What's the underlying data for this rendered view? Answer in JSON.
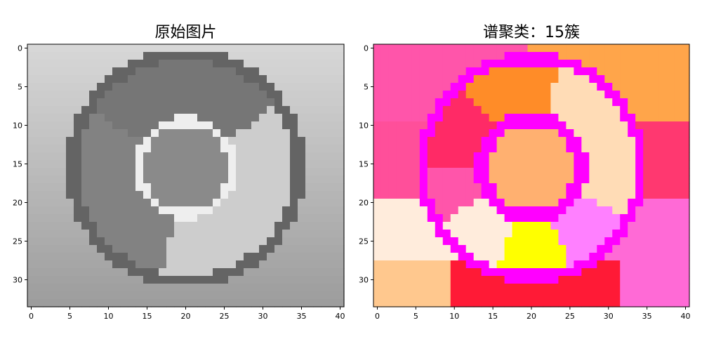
{
  "chart_data": [
    {
      "type": "heatmap",
      "title": "原始图片",
      "xlabel": "",
      "ylabel": "",
      "xlim": [
        -0.5,
        40.5
      ],
      "ylim": [
        33.5,
        -0.5
      ],
      "xticks": [
        "0",
        "5",
        "10",
        "15",
        "20",
        "25",
        "30",
        "35",
        "40"
      ],
      "yticks": [
        "0",
        "5",
        "10",
        "15",
        "20",
        "25",
        "30"
      ],
      "colormap": "gray",
      "description_of_values": "grayscale intensity image (41 x 34 pixels) of a circular logo"
    },
    {
      "type": "heatmap",
      "title": "谱聚类：15簇",
      "xlabel": "",
      "ylabel": "",
      "xlim": [
        -0.5,
        40.5
      ],
      "ylim": [
        33.5,
        -0.5
      ],
      "xticks": [
        "0",
        "5",
        "10",
        "15",
        "20",
        "25",
        "30",
        "35",
        "40"
      ],
      "yticks": [
        "0",
        "5",
        "10",
        "15",
        "20",
        "25",
        "30"
      ],
      "colormap": "spring",
      "n_clusters": 15,
      "cluster_colors": [
        "#ff55aa",
        "#ff4f9a",
        "#ff2a66",
        "#ff8c28",
        "#ffa54a",
        "#ff00ff",
        "#ffb070",
        "#ffdcb6",
        "#ff3870",
        "#ffecdc",
        "#ff80ff",
        "#ffc88e",
        "#ffff00",
        "#ff1a36",
        "#ff6ad6"
      ]
    }
  ]
}
